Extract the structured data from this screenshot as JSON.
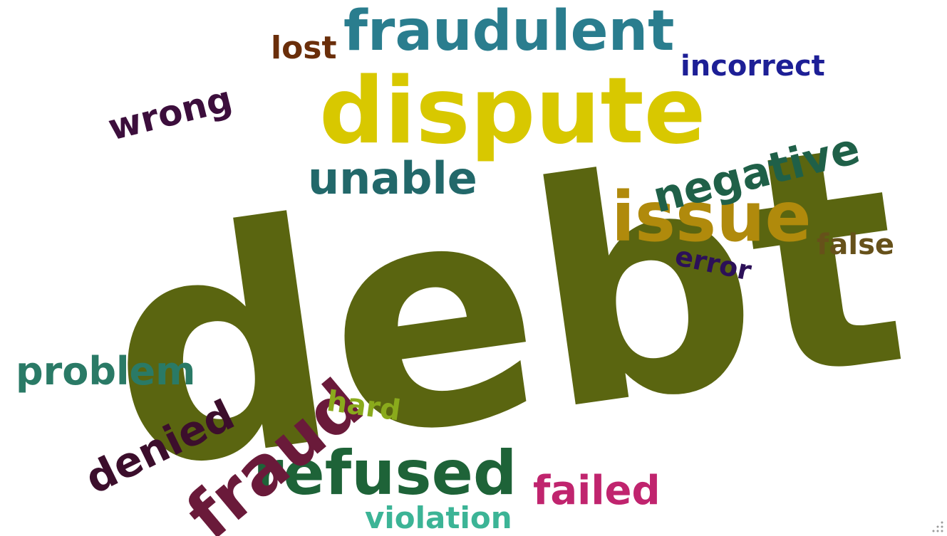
{
  "word_cloud": {
    "words": [
      {
        "id": "debt",
        "text": "debt",
        "color": "#5a6510"
      },
      {
        "id": "dispute",
        "text": "dispute",
        "color": "#d8c800"
      },
      {
        "id": "fraudulent",
        "text": "fraudulent",
        "color": "#2a7d8e"
      },
      {
        "id": "issue",
        "text": "issue",
        "color": "#b08a0c"
      },
      {
        "id": "negative",
        "text": "negative",
        "color": "#1f6048"
      },
      {
        "id": "refused",
        "text": "refused",
        "color": "#1e6338"
      },
      {
        "id": "fraud",
        "text": "fraud",
        "color": "#6a1a3a"
      },
      {
        "id": "unable",
        "text": "unable",
        "color": "#22686a"
      },
      {
        "id": "problem",
        "text": "problem",
        "color": "#2a7a66"
      },
      {
        "id": "denied",
        "text": "denied",
        "color": "#3c0e2c"
      },
      {
        "id": "wrong",
        "text": "wrong",
        "color": "#3c0e3c"
      },
      {
        "id": "lost",
        "text": "lost",
        "color": "#6a2e0a"
      },
      {
        "id": "incorrect",
        "text": "incorrect",
        "color": "#1d1f96"
      },
      {
        "id": "failed",
        "text": "failed",
        "color": "#c0246e"
      },
      {
        "id": "violation",
        "text": "violation",
        "color": "#3cb496"
      },
      {
        "id": "hard",
        "text": "hard",
        "color": "#8aaa1c"
      },
      {
        "id": "error",
        "text": "error",
        "color": "#2c1058"
      },
      {
        "id": "false",
        "text": "false",
        "color": "#66511a"
      }
    ]
  }
}
